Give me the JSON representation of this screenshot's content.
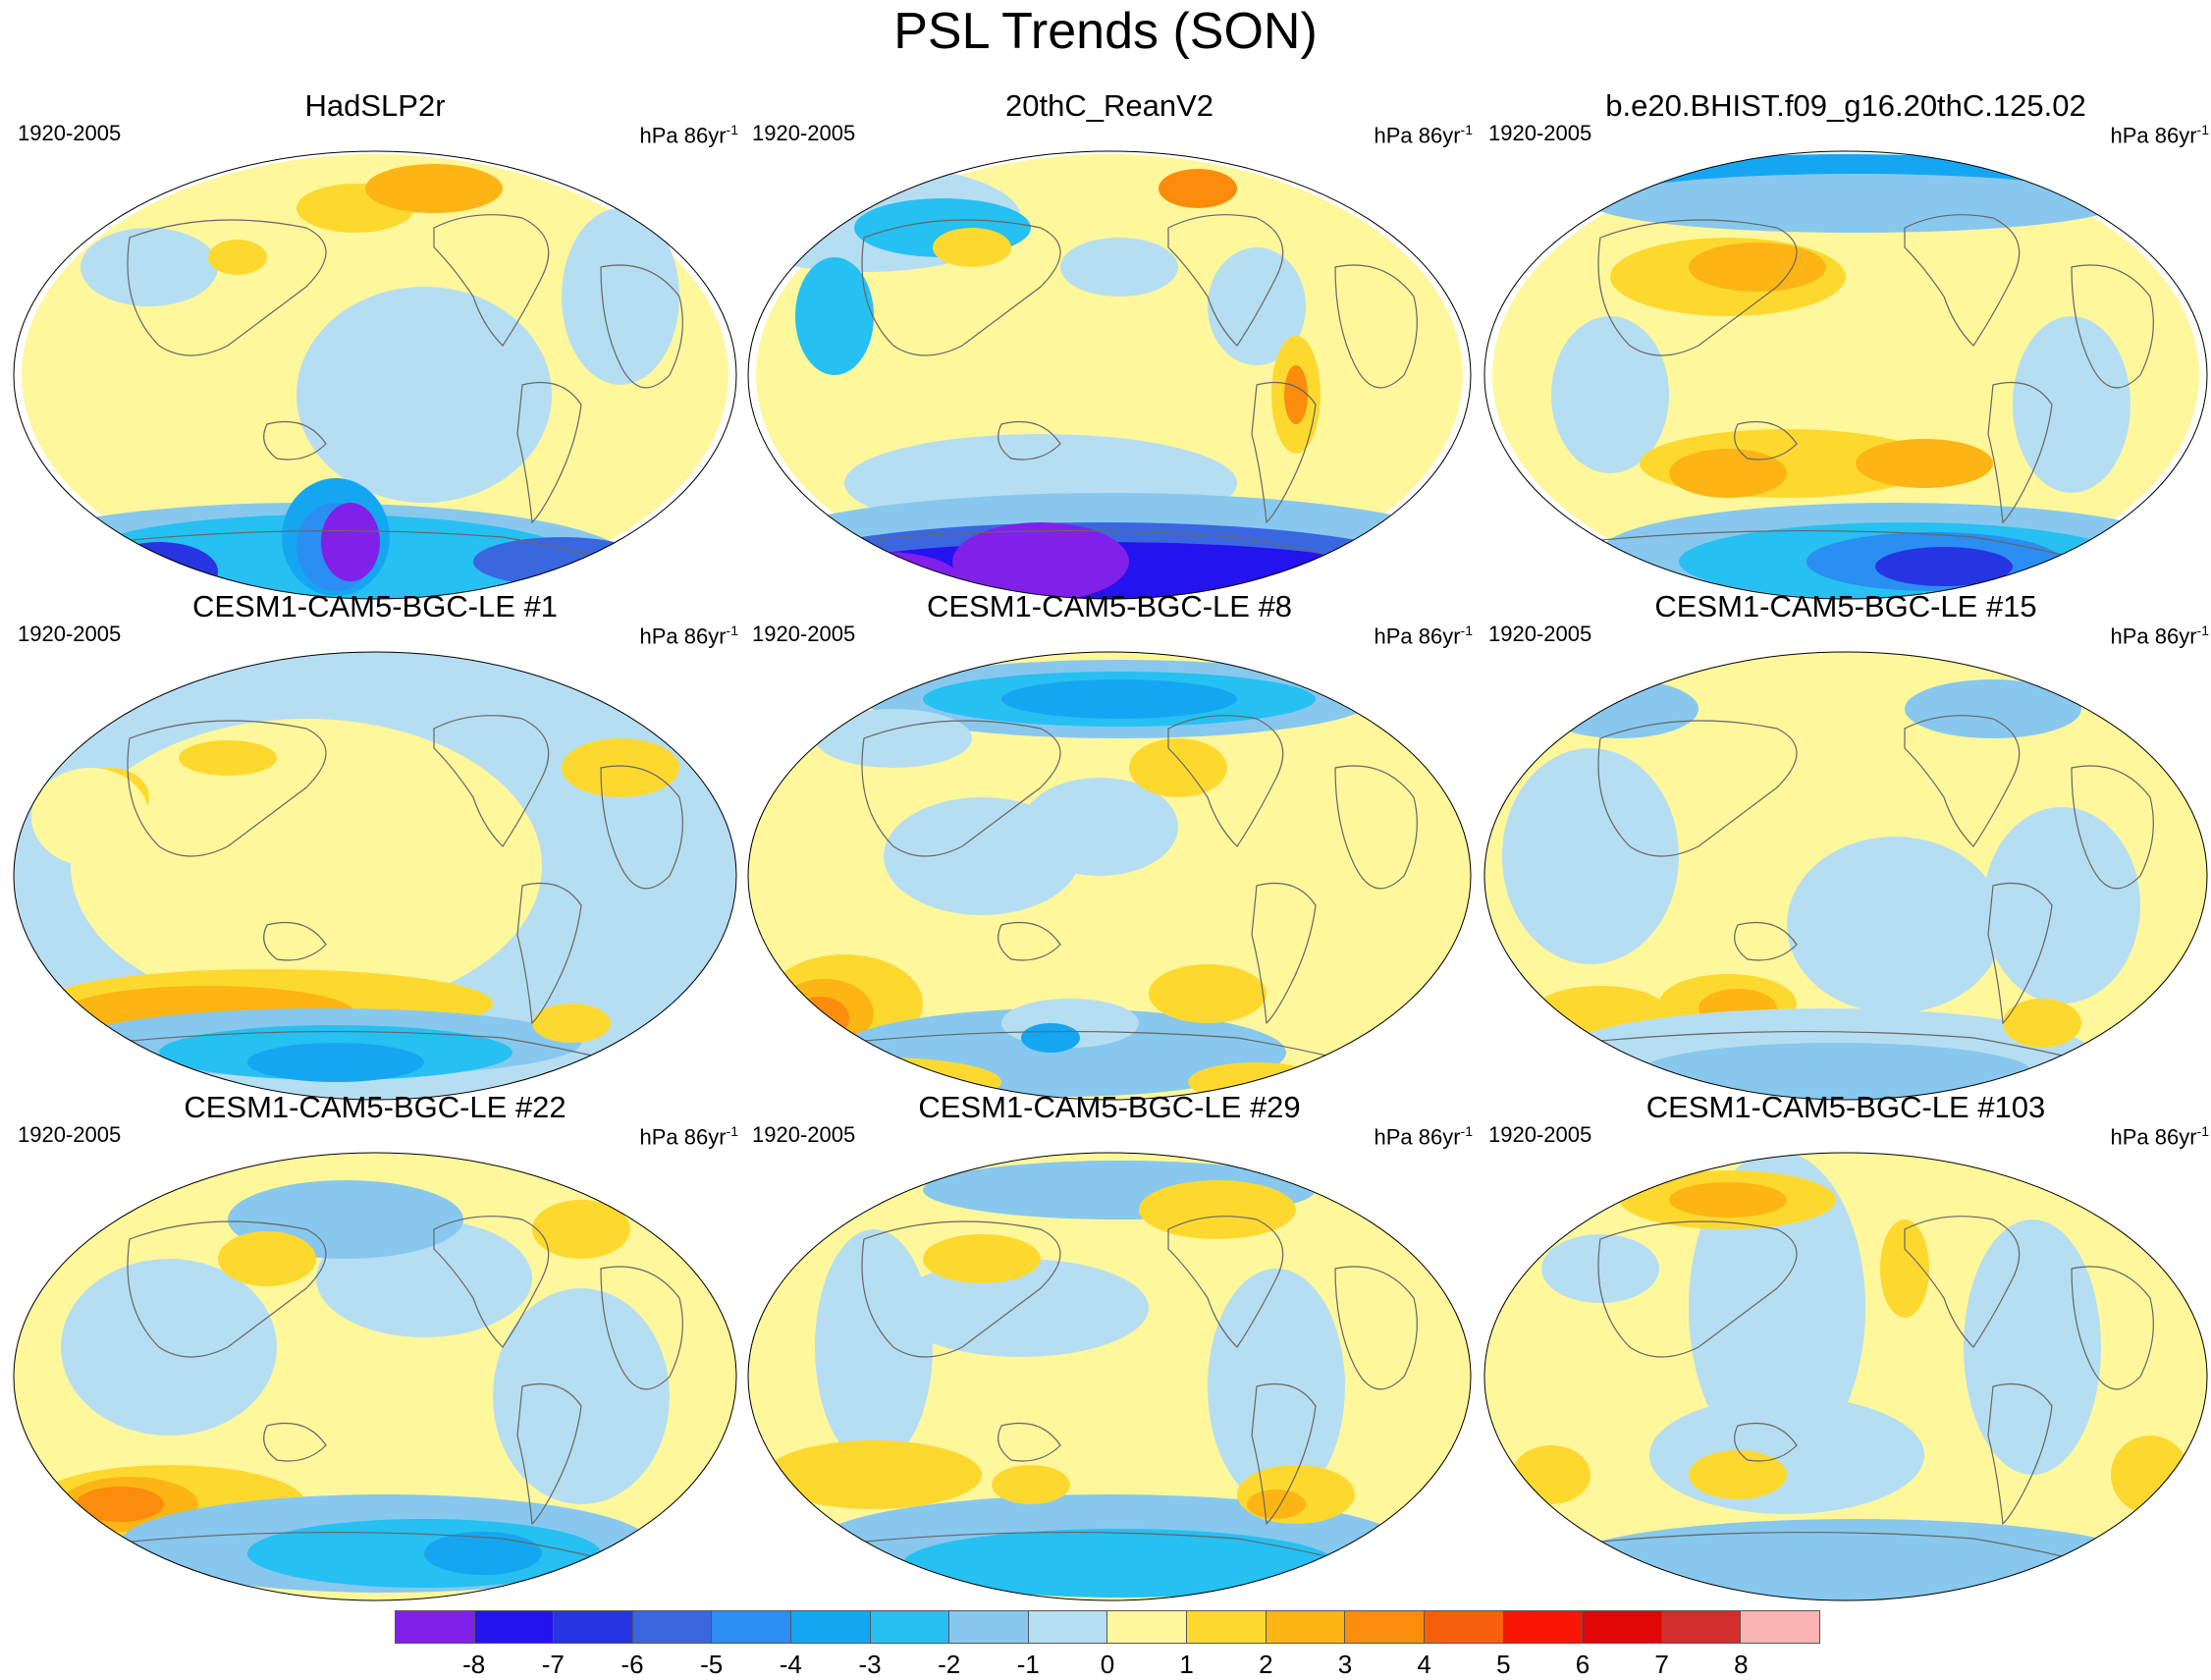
{
  "title": "PSL Trends (SON)",
  "panel_period": "1920-2005",
  "units": {
    "base": "hPa 86yr",
    "exponent": "-1"
  },
  "panels": [
    {
      "title": "HadSLP2r"
    },
    {
      "title": "20thC_ReanV2"
    },
    {
      "title": "b.e20.BHIST.f09_g16.20thC.125.02"
    },
    {
      "title": "CESM1-CAM5-BGC-LE #1"
    },
    {
      "title": "CESM1-CAM5-BGC-LE #8"
    },
    {
      "title": "CESM1-CAM5-BGC-LE #15"
    },
    {
      "title": "CESM1-CAM5-BGC-LE #22"
    },
    {
      "title": "CESM1-CAM5-BGC-LE #29"
    },
    {
      "title": "CESM1-CAM5-BGC-LE #103"
    }
  ],
  "colorbar": {
    "labels": [
      "-8",
      "-7",
      "-6",
      "-5",
      "-4",
      "-3",
      "-2",
      "-1",
      "0",
      "1",
      "2",
      "3",
      "4",
      "5",
      "6",
      "7",
      "8"
    ],
    "colors": [
      "#8120e8",
      "#2412ef",
      "#2634e2",
      "#3a66e0",
      "#2a8ef2",
      "#15a6f2",
      "#26c0f2",
      "#88c8ee",
      "#b6def2",
      "#fef79c",
      "#fdd930",
      "#fcb514",
      "#fb8c0c",
      "#f85f0c",
      "#fb1504",
      "#e00606",
      "#d42d2d",
      "#fbb4b4"
    ]
  }
}
